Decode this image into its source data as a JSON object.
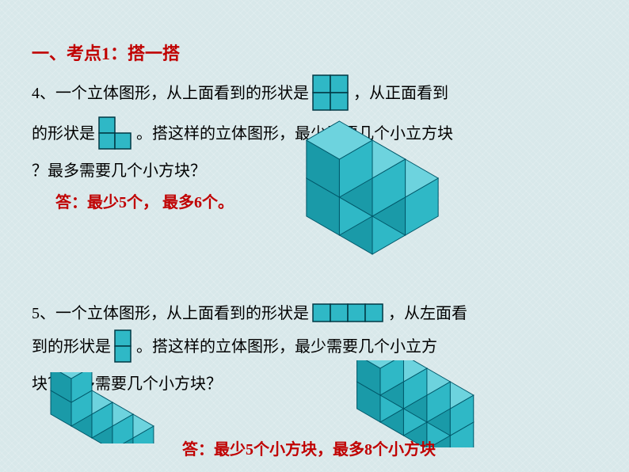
{
  "title": "一、考点1：搭一搭",
  "q1": {
    "num": "4、",
    "part1": "一个立体图形，从上面看到的形状是",
    "part2": "，从正面看到",
    "part3": "的形状是",
    "part4": "。搭这样的立体图形，最少需要几个小立方块",
    "part5": "？最多需要几个小方块？",
    "answer": "答：最少5个， 最多6个。",
    "shape_top": {
      "cells": [
        [
          0,
          0
        ],
        [
          1,
          0
        ],
        [
          0,
          1
        ],
        [
          1,
          1
        ]
      ],
      "cell_size": 22,
      "fill": "#2fb8c6",
      "stroke": "#003844"
    },
    "shape_front": {
      "cells": [
        [
          0,
          0
        ],
        [
          0,
          1
        ],
        [
          1,
          1
        ]
      ],
      "cell_size": 20,
      "fill": "#2fb8c6",
      "stroke": "#003844"
    }
  },
  "q2": {
    "num": "5、",
    "part1": "一个立体图形，从上面看到的形状是",
    "part2": "，从左面看",
    "part3": "到的形状是",
    "part4": "。搭这样的立体图形，最少需要几个小立方",
    "part5": "块？最多需要几个小方块？",
    "answer": "答：最少5个小方块，最多8个小方块",
    "shape_top": {
      "cells": [
        [
          0,
          0
        ],
        [
          1,
          0
        ],
        [
          2,
          0
        ],
        [
          3,
          0
        ]
      ],
      "cell_size": 22,
      "fill": "#2fb8c6",
      "stroke": "#003844"
    },
    "shape_left": {
      "cells": [
        [
          0,
          0
        ],
        [
          0,
          1
        ]
      ],
      "cell_size": 20,
      "fill": "#2fb8c6",
      "stroke": "#003844"
    }
  },
  "colors": {
    "cube_top": "#6dd3de",
    "cube_left": "#1a9aa8",
    "cube_right": "#2fb8c6",
    "cube_stroke": "#00586a"
  }
}
